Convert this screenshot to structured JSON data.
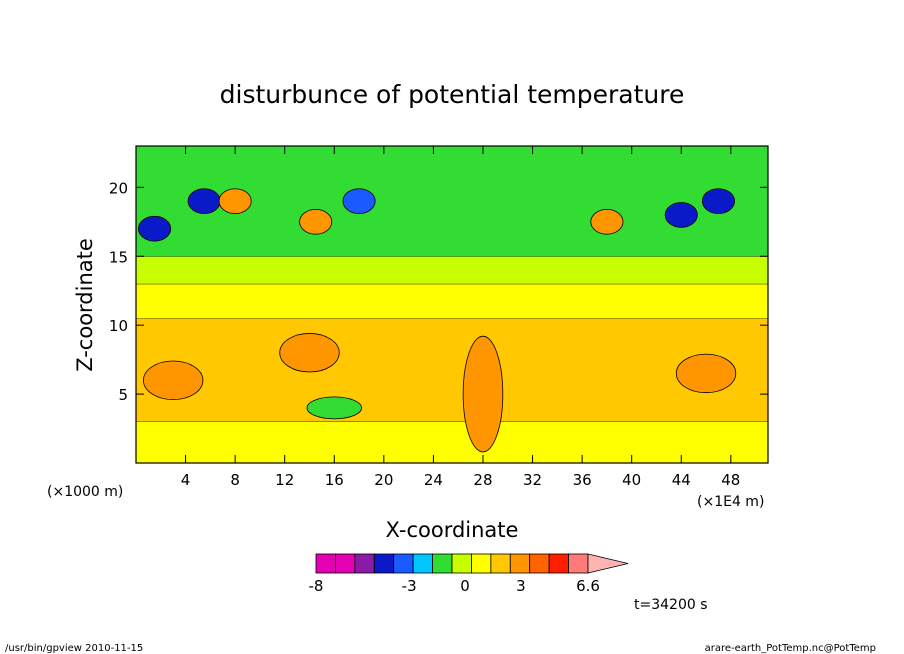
{
  "chart_data": {
    "type": "heatmap",
    "title": "disturbunce of potential temperature",
    "xlabel": "X-coordinate",
    "ylabel": "Z-coordinate",
    "x_unit_left": "(×1000 m)",
    "x_unit_right": "(×1E4 m)",
    "xlim": [
      0,
      51
    ],
    "ylim": [
      0,
      23
    ],
    "xticks": [
      4,
      8,
      12,
      16,
      20,
      24,
      28,
      32,
      36,
      40,
      44,
      48
    ],
    "yticks": [
      5,
      10,
      15,
      20
    ],
    "time_label": "t=34200 s",
    "colorbar": {
      "tick_labels": [
        "-8",
        "-3",
        "0",
        "3",
        "6.6"
      ],
      "tick_values": [
        -8,
        -3,
        0,
        3,
        6.6
      ],
      "colors": [
        "#e600b4",
        "#e600b4",
        "#8a1aa8",
        "#0a1ac8",
        "#1a5aff",
        "#00c8ff",
        "#32dc32",
        "#c8ff00",
        "#ffff00",
        "#ffc800",
        "#ff9600",
        "#ff6400",
        "#ff1e00",
        "#ff7a78",
        "#ffb4b4"
      ]
    },
    "bands": [
      {
        "level_low": 0.6,
        "level_high": 1.2,
        "z_range": [
          0,
          3
        ],
        "color": "#ffff00"
      },
      {
        "level_low": 1.2,
        "level_high": 2.4,
        "z_range": [
          3,
          10.5
        ],
        "color": "#ffc800"
      },
      {
        "level_low": 0.6,
        "level_high": 1.2,
        "z_range": [
          10.5,
          13
        ],
        "color": "#ffff00"
      },
      {
        "level_low": 0.0,
        "level_high": 0.6,
        "z_range": [
          13,
          15
        ],
        "color": "#c8ff00"
      },
      {
        "level_low": -0.6,
        "level_high": 0.0,
        "z_range": [
          15,
          23
        ],
        "color": "#32dc32"
      }
    ],
    "features": [
      {
        "kind": "warm_patch",
        "x": 28,
        "z": 5,
        "value": 3.0,
        "color": "#ff9600"
      },
      {
        "kind": "warm_patch",
        "x": 3,
        "z": 6,
        "value": 3.0,
        "color": "#ff9600"
      },
      {
        "kind": "warm_patch",
        "x": 46,
        "z": 6.5,
        "value": 3.0,
        "color": "#ff9600"
      },
      {
        "kind": "warm_patch",
        "x": 14,
        "z": 8,
        "value": 3.0,
        "color": "#ff9600"
      },
      {
        "kind": "cold_patch",
        "x": 16,
        "z": 4,
        "value": -0.6,
        "color": "#32dc32"
      },
      {
        "kind": "cold_core",
        "x": 1.5,
        "z": 17,
        "value": -3.0,
        "color": "#0a1ac8"
      },
      {
        "kind": "cold_core",
        "x": 5.5,
        "z": 19,
        "value": -2.4,
        "color": "#0a1ac8"
      },
      {
        "kind": "cold_core",
        "x": 18,
        "z": 19,
        "value": -2.4,
        "color": "#1a5aff"
      },
      {
        "kind": "cold_core",
        "x": 44,
        "z": 18,
        "value": -2.4,
        "color": "#0a1ac8"
      },
      {
        "kind": "cold_core",
        "x": 47,
        "z": 19,
        "value": -2.4,
        "color": "#0a1ac8"
      },
      {
        "kind": "warm_core",
        "x": 8,
        "z": 19,
        "value": 2.4,
        "color": "#ff9600"
      },
      {
        "kind": "warm_core",
        "x": 14.5,
        "z": 17.5,
        "value": 2.4,
        "color": "#ff9600"
      },
      {
        "kind": "warm_core",
        "x": 38,
        "z": 17.5,
        "value": 2.4,
        "color": "#ff9600"
      }
    ]
  },
  "footer": {
    "left": "/usr/bin/gpview  2010-11-15",
    "right": "arare-earth_PotTemp.nc@PotTemp"
  }
}
